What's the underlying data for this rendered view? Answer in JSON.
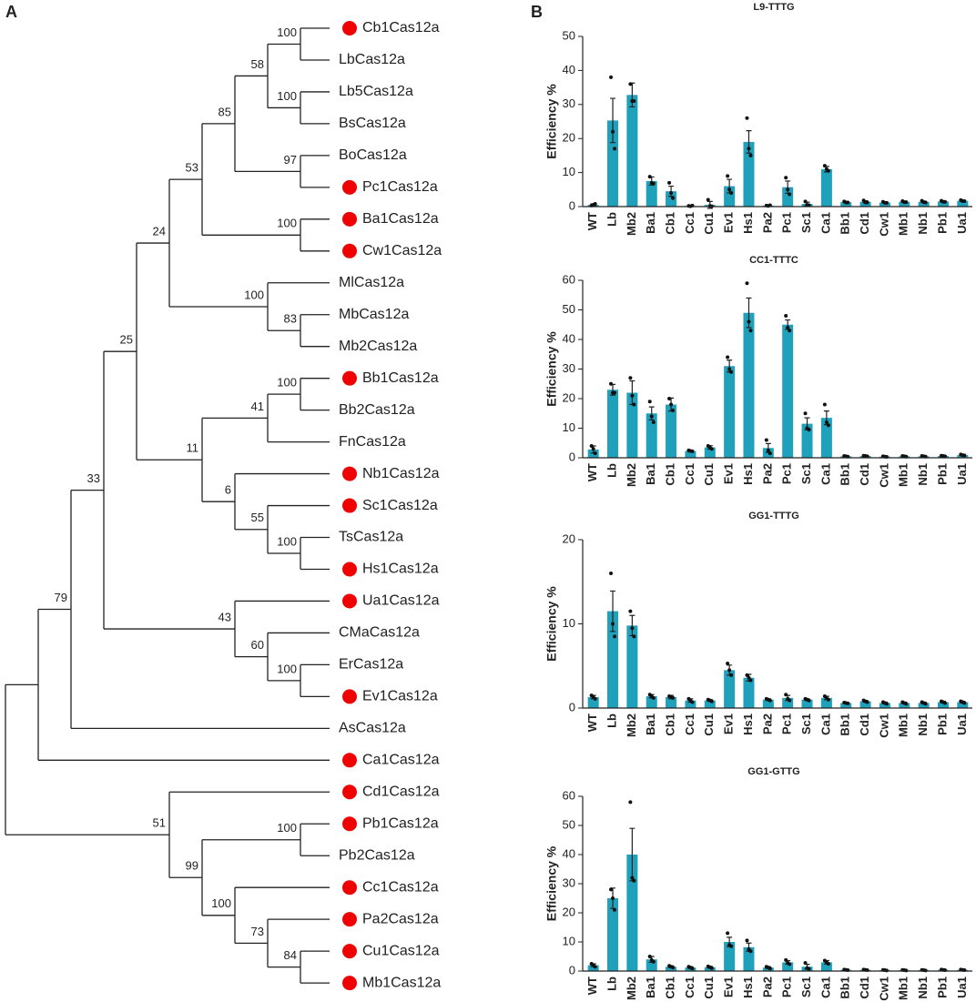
{
  "panels": [
    "A",
    "B"
  ],
  "tree": {
    "children": [
      {
        "children": [
          {
            "support": 79,
            "children": [
              {
                "support": 33,
                "children": [
                  {
                    "support": 25,
                    "children": [
                      {
                        "support": 24,
                        "children": [
                          {
                            "support": 53,
                            "children": [
                              {
                                "support": 85,
                                "children": [
                                  {
                                    "support": 58,
                                    "children": [
                                      {
                                        "support": 100,
                                        "children": [
                                          {
                                            "label": "Cb1Cas12a",
                                            "marked": true
                                          },
                                          {
                                            "label": "LbCas12a"
                                          }
                                        ]
                                      },
                                      {
                                        "support": 100,
                                        "children": [
                                          {
                                            "label": "Lb5Cas12a"
                                          },
                                          {
                                            "label": "BsCas12a"
                                          }
                                        ]
                                      }
                                    ]
                                  },
                                  {
                                    "support": 97,
                                    "children": [
                                      {
                                        "label": "BoCas12a"
                                      },
                                      {
                                        "label": "Pc1Cas12a",
                                        "marked": true
                                      }
                                    ]
                                  }
                                ]
                              },
                              {
                                "support": 100,
                                "children": [
                                  {
                                    "label": "Ba1Cas12a",
                                    "marked": true
                                  },
                                  {
                                    "label": "Cw1Cas12a",
                                    "marked": true
                                  }
                                ]
                              }
                            ]
                          },
                          {
                            "support": 100,
                            "children": [
                              {
                                "label": "MlCas12a"
                              },
                              {
                                "support": 83,
                                "children": [
                                  {
                                    "label": "MbCas12a"
                                  },
                                  {
                                    "label": "Mb2Cas12a"
                                  }
                                ]
                              }
                            ]
                          }
                        ]
                      },
                      {
                        "support": 11,
                        "children": [
                          {
                            "support": 41,
                            "children": [
                              {
                                "support": 100,
                                "children": [
                                  {
                                    "label": "Bb1Cas12a",
                                    "marked": true
                                  },
                                  {
                                    "label": "Bb2Cas12a"
                                  }
                                ]
                              },
                              {
                                "label": "FnCas12a"
                              }
                            ]
                          },
                          {
                            "support": 6,
                            "children": [
                              {
                                "label": "Nb1Cas12a",
                                "marked": true
                              },
                              {
                                "support": 55,
                                "children": [
                                  {
                                    "label": "Sc1Cas12a",
                                    "marked": true
                                  },
                                  {
                                    "support": 100,
                                    "children": [
                                      {
                                        "label": "TsCas12a"
                                      },
                                      {
                                        "label": "Hs1Cas12a",
                                        "marked": true
                                      }
                                    ]
                                  }
                                ]
                              }
                            ]
                          }
                        ]
                      }
                    ]
                  },
                  {
                    "support": 43,
                    "children": [
                      {
                        "label": "Ua1Cas12a",
                        "marked": true
                      },
                      {
                        "support": 60,
                        "children": [
                          {
                            "label": "CMaCas12a"
                          },
                          {
                            "support": 100,
                            "children": [
                              {
                                "label": "ErCas12a"
                              },
                              {
                                "label": "Ev1Cas12a",
                                "marked": true
                              }
                            ]
                          }
                        ]
                      }
                    ]
                  }
                ]
              },
              {
                "label": "AsCas12a"
              }
            ]
          },
          {
            "label": "Ca1Cas12a",
            "marked": true
          }
        ]
      },
      {
        "support": 51,
        "children": [
          {
            "label": "Cd1Cas12a",
            "marked": true
          },
          {
            "support": 99,
            "children": [
              {
                "support": 100,
                "children": [
                  {
                    "label": "Pb1Cas12a",
                    "marked": true
                  },
                  {
                    "label": "Pb2Cas12a"
                  }
                ]
              },
              {
                "support": 100,
                "children": [
                  {
                    "label": "Cc1Cas12a",
                    "marked": true
                  },
                  {
                    "support": 73,
                    "children": [
                      {
                        "label": "Pa2Cas12a",
                        "marked": true
                      },
                      {
                        "support": 84,
                        "children": [
                          {
                            "label": "Cu1Cas12a",
                            "marked": true
                          },
                          {
                            "label": "Mb1Cas12a",
                            "marked": true
                          }
                        ]
                      }
                    ]
                  }
                ]
              }
            ]
          }
        ]
      }
    ]
  },
  "chart_data": [
    {
      "type": "bar",
      "title": "L9-TTTG",
      "ylabel": "Efficiency %",
      "color": "#1fa0bb",
      "categories": [
        "WT",
        "Lb",
        "Mb2",
        "Ba1",
        "Cb1",
        "Cc1",
        "Cu1",
        "Ev1",
        "Hs1",
        "Pa2",
        "Pc1",
        "Sc1",
        "Ca1",
        "Bb1",
        "Cd1",
        "Cw1",
        "Mb1",
        "Nb1",
        "Pb1",
        "Ua1"
      ],
      "values": [
        0.5,
        25.3,
        32.8,
        7.5,
        4.5,
        0.2,
        0.5,
        6,
        19,
        0.3,
        5.7,
        0.8,
        11,
        1.3,
        1.4,
        1.2,
        1.4,
        1.4,
        1.5,
        1.7
      ],
      "errors": [
        0.3,
        6.5,
        3.5,
        1.2,
        1.5,
        0.1,
        1,
        2,
        3.3,
        0.2,
        1.8,
        0.5,
        0.8,
        0.2,
        0.3,
        0.2,
        0.2,
        0.2,
        0.2,
        0.2
      ],
      "points": [
        [
          0.3,
          0.5,
          0.8
        ],
        [
          38,
          22,
          17
        ],
        [
          36,
          31,
          31
        ],
        [
          8.8,
          7,
          6.8
        ],
        [
          7,
          4,
          2.5
        ],
        [
          0.2,
          0.1,
          0.3
        ],
        [
          2,
          0.2,
          0.1
        ],
        [
          9,
          5,
          4
        ],
        [
          26,
          17,
          15
        ],
        [
          0.3,
          0.2,
          0.4
        ],
        [
          8.5,
          5,
          3.6
        ],
        [
          1.5,
          0.5,
          0.4
        ],
        [
          12,
          11,
          10.5
        ],
        [
          1.5,
          1.2,
          1.2
        ],
        [
          1.8,
          1.2,
          1.2
        ],
        [
          1.4,
          1.1,
          1.1
        ],
        [
          1.6,
          1.3,
          1.3
        ],
        [
          1.7,
          1.3,
          1.2
        ],
        [
          1.7,
          1.4,
          1.4
        ],
        [
          1.9,
          1.6,
          1.6
        ]
      ],
      "ylim": [
        0,
        50
      ],
      "yticks": [
        0,
        10,
        20,
        30,
        40,
        50
      ]
    },
    {
      "type": "bar",
      "title": "CC1-TTTC",
      "ylabel": "Efficiency %",
      "color": "#1fa0bb",
      "categories": [
        "WT",
        "Lb",
        "Mb2",
        "Ba1",
        "Cb1",
        "Cc1",
        "Cu1",
        "Ev1",
        "Hs1",
        "Pa2",
        "Pc1",
        "Sc1",
        "Ca1",
        "Bb1",
        "Cd1",
        "Cw1",
        "Mb1",
        "Nb1",
        "Pb1",
        "Ua1"
      ],
      "values": [
        2.8,
        23,
        22,
        15,
        18,
        2.3,
        3.5,
        31,
        49,
        3.3,
        45,
        11.5,
        13.5,
        0.5,
        0.6,
        0.4,
        0.5,
        0.5,
        0.6,
        0.9
      ],
      "errors": [
        1.2,
        1.8,
        4,
        2.2,
        2.2,
        0.3,
        0.6,
        2,
        5,
        1.5,
        1.6,
        2,
        2.3,
        0.1,
        0.1,
        0.1,
        0.1,
        0.1,
        0.1,
        0.2
      ],
      "points": [
        [
          4,
          3,
          1.5
        ],
        [
          25,
          22,
          22
        ],
        [
          27,
          21,
          18
        ],
        [
          19,
          14,
          12
        ],
        [
          20,
          18,
          16
        ],
        [
          2.5,
          2.3,
          2.2
        ],
        [
          4,
          3.5,
          3
        ],
        [
          34,
          30,
          29
        ],
        [
          59,
          46,
          43
        ],
        [
          6,
          2.5,
          1.5
        ],
        [
          48,
          44,
          43
        ],
        [
          15,
          10,
          9.5
        ],
        [
          18,
          12,
          11
        ],
        [
          0.6,
          0.5,
          0.4
        ],
        [
          0.7,
          0.6,
          0.5
        ],
        [
          0.5,
          0.4,
          0.3
        ],
        [
          0.6,
          0.5,
          0.4
        ],
        [
          0.6,
          0.5,
          0.4
        ],
        [
          0.7,
          0.6,
          0.5
        ],
        [
          1.1,
          0.9,
          0.8
        ]
      ],
      "ylim": [
        0,
        60
      ],
      "yticks": [
        0,
        10,
        20,
        30,
        40,
        50,
        60
      ]
    },
    {
      "type": "bar",
      "title": "GG1-TTTG",
      "ylabel": "Efficiency %",
      "color": "#1fa0bb",
      "categories": [
        "WT",
        "Lb",
        "Mb2",
        "Ba1",
        "Cb1",
        "Cc1",
        "Cu1",
        "Ev1",
        "Hs1",
        "Pa2",
        "Pc1",
        "Sc1",
        "Ca1",
        "Bb1",
        "Cd1",
        "Cw1",
        "Mb1",
        "Nb1",
        "Pb1",
        "Ua1"
      ],
      "values": [
        1.3,
        11.5,
        9.8,
        1.4,
        1.3,
        0.9,
        0.9,
        4.5,
        3.6,
        1,
        1.2,
        1,
        1.2,
        0.6,
        0.8,
        0.6,
        0.6,
        0.6,
        0.7,
        0.7
      ],
      "errors": [
        0.2,
        2.4,
        1.2,
        0.2,
        0.2,
        0.2,
        0.1,
        0.6,
        0.4,
        0.1,
        0.3,
        0.1,
        0.2,
        0.05,
        0.1,
        0.1,
        0.1,
        0.1,
        0.1,
        0.1
      ],
      "points": [
        [
          1.5,
          1.3,
          1.1
        ],
        [
          16,
          10,
          8.5
        ],
        [
          11.5,
          9.5,
          8.5
        ],
        [
          1.6,
          1.4,
          1.2
        ],
        [
          1.4,
          1.3,
          1.2
        ],
        [
          1.1,
          0.9,
          0.7
        ],
        [
          1,
          0.9,
          0.8
        ],
        [
          5.3,
          4.5,
          3.9
        ],
        [
          3.9,
          3.6,
          3.3
        ],
        [
          1.1,
          1,
          0.9
        ],
        [
          1.6,
          1.1,
          0.9
        ],
        [
          1.1,
          1,
          0.9
        ],
        [
          1.4,
          1.2,
          1
        ],
        [
          0.65,
          0.6,
          0.55
        ],
        [
          0.9,
          0.8,
          0.7
        ],
        [
          0.7,
          0.6,
          0.5
        ],
        [
          0.7,
          0.6,
          0.5
        ],
        [
          0.7,
          0.6,
          0.5
        ],
        [
          0.8,
          0.7,
          0.6
        ],
        [
          0.8,
          0.7,
          0.6
        ]
      ],
      "ylim": [
        0,
        20
      ],
      "yticks": [
        0,
        10,
        20
      ]
    },
    {
      "type": "bar",
      "title": "GG1-GTTG",
      "ylabel": "Efficiency %",
      "color": "#1fa0bb",
      "categories": [
        "WT",
        "Lb",
        "Mb2",
        "Ba1",
        "Cb1",
        "Cc1",
        "Cu1",
        "Ev1",
        "Hs1",
        "Pa2",
        "Pc1",
        "Sc1",
        "Ca1",
        "Bb1",
        "Cd1",
        "Cw1",
        "Mb1",
        "Nb1",
        "Pb1",
        "Ua1"
      ],
      "values": [
        2,
        25,
        40,
        4,
        1.5,
        1.2,
        1.3,
        10,
        8.2,
        1.2,
        3,
        1.5,
        3,
        0.4,
        0.4,
        0.3,
        0.3,
        0.3,
        0.4,
        0.4
      ],
      "errors": [
        0.5,
        3.5,
        9,
        1,
        0.3,
        0.3,
        0.3,
        1.6,
        1.4,
        0.3,
        0.6,
        0.8,
        0.6,
        0.1,
        0.1,
        0.1,
        0.1,
        0.1,
        0.1,
        0.1
      ],
      "points": [
        [
          2.5,
          2,
          1.5
        ],
        [
          28,
          25,
          21
        ],
        [
          58,
          32,
          31
        ],
        [
          5,
          3.8,
          3.2
        ],
        [
          1.8,
          1.5,
          1.2
        ],
        [
          1.5,
          1.2,
          0.9
        ],
        [
          1.6,
          1.3,
          1
        ],
        [
          13,
          9,
          8.5
        ],
        [
          10.5,
          7.5,
          6.8
        ],
        [
          1.5,
          1.2,
          0.9
        ],
        [
          3.8,
          2.8,
          2.4
        ],
        [
          2.8,
          1,
          0.8
        ],
        [
          3.6,
          3,
          2.5
        ],
        [
          0.5,
          0.4,
          0.3
        ],
        [
          0.5,
          0.4,
          0.3
        ],
        [
          0.4,
          0.3,
          0.2
        ],
        [
          0.4,
          0.3,
          0.2
        ],
        [
          0.4,
          0.3,
          0.2
        ],
        [
          0.5,
          0.4,
          0.3
        ],
        [
          0.5,
          0.4,
          0.3
        ]
      ],
      "ylim": [
        0,
        60
      ],
      "yticks": [
        0,
        10,
        20,
        30,
        40,
        50,
        60
      ]
    }
  ]
}
